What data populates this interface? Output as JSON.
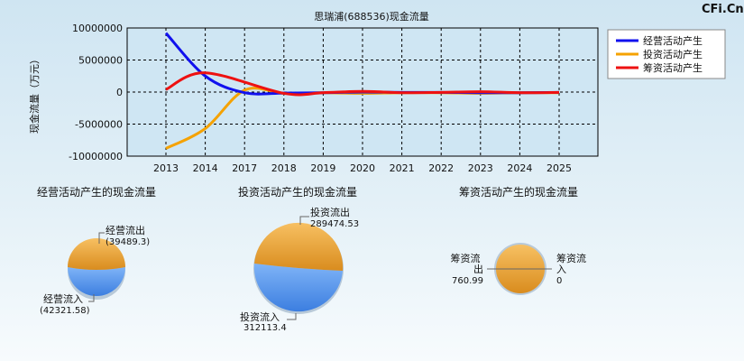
{
  "watermark": "CFi.Cn",
  "chart_data": [
    {
      "type": "line",
      "title": "思瑞浦(688536)现金流量",
      "ylabel": "现金流量（万元）",
      "xlabel": "",
      "x": [
        "2013",
        "2014",
        "2017",
        "2018",
        "2019",
        "2020",
        "2021",
        "2022",
        "2023",
        "2024",
        "2025"
      ],
      "ylim": [
        -10000000,
        10000000
      ],
      "yticks": [
        "10000000",
        "5000000",
        "0",
        "-5000000",
        "-10000000"
      ],
      "grid": true,
      "legend": "top-right",
      "series": [
        {
          "name": "经营活动产生",
          "color": "#1111ee",
          "values": [
            9200000,
            2500000,
            -100000,
            -150000,
            -100000,
            0,
            -50000,
            -50000,
            -100000,
            -100000,
            -50000
          ]
        },
        {
          "name": "投资活动产生",
          "color": "#f5a200",
          "values": [
            -8800000,
            -5700000,
            300000,
            -200000,
            -100000,
            -200000,
            -100000,
            -100000,
            -200000,
            -100000,
            -100000
          ]
        },
        {
          "name": "筹资活动产生",
          "color": "#ee1111",
          "values": [
            400000,
            3000000,
            null,
            -200000,
            -100000,
            100000,
            -100000,
            -50000,
            50000,
            -100000,
            -50000
          ]
        }
      ]
    },
    {
      "type": "pie",
      "title": "经营活动产生的现金流量",
      "slices": [
        {
          "label": "经营流出",
          "value": "(39489.3)",
          "color": "#f0a830"
        },
        {
          "label": "经营流入",
          "value": "(42321.58)",
          "color": "#5b9bf0"
        }
      ]
    },
    {
      "type": "pie",
      "title": "投资活动产生的现金流量",
      "slices": [
        {
          "label": "投资流出",
          "value": "289474.53",
          "color": "#f0a830"
        },
        {
          "label": "投资流入",
          "value": "312113.4",
          "color": "#5b9bf0"
        }
      ]
    },
    {
      "type": "pie",
      "title": "筹资活动产生的现金流量",
      "slices": [
        {
          "label": "筹资流出",
          "value": "760.99",
          "color": "#f0a830"
        },
        {
          "label": "筹资流入",
          "value": "0",
          "color": "#5b9bf0"
        }
      ]
    }
  ]
}
